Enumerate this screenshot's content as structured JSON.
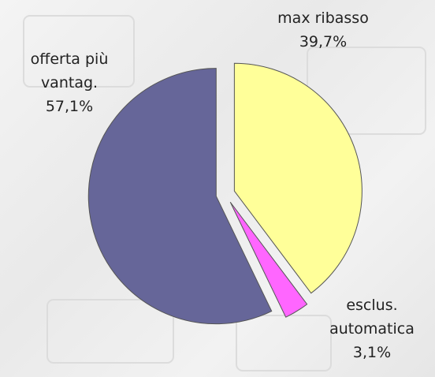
{
  "chart_data": {
    "type": "pie",
    "categories": [
      "max ribasso",
      "esclus. automatica",
      "offerta più vantag."
    ],
    "values": [
      39.7,
      3.1,
      57.1
    ],
    "value_labels": [
      "39,7%",
      "3,1%",
      "57,1%"
    ],
    "colors": [
      "#ffff99",
      "#ff66ff",
      "#666699"
    ]
  }
}
